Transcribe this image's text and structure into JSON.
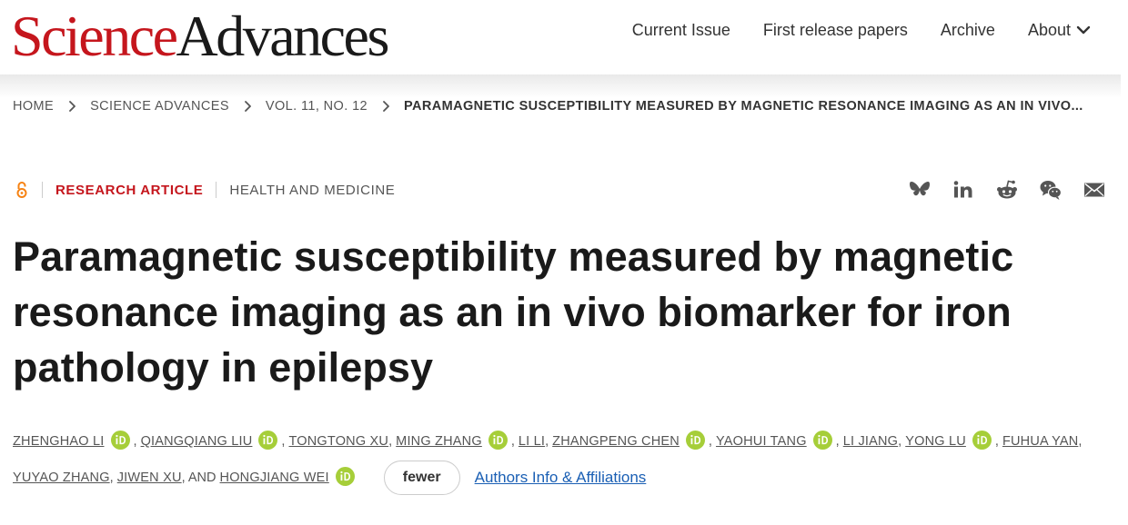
{
  "header": {
    "logo": {
      "science": "Science",
      "advances": "Advances"
    },
    "nav": [
      {
        "label": "Current Issue"
      },
      {
        "label": "First release papers"
      },
      {
        "label": "Archive"
      },
      {
        "label": "About"
      }
    ]
  },
  "breadcrumb": [
    "HOME",
    "SCIENCE ADVANCES",
    "VOL. 11, NO. 12",
    "PARAMAGNETIC SUSCEPTIBILITY MEASURED BY MAGNETIC RESONANCE IMAGING AS AN IN VIVO..."
  ],
  "article": {
    "type": "RESEARCH ARTICLE",
    "subject": "HEALTH AND MEDICINE",
    "title": "Paramagnetic susceptibility measured by magnetic resonance imaging as an in vivo biomarker for iron pathology in epilepsy"
  },
  "authors": [
    "ZHENGHAO LI",
    "QIANGQIANG LIU",
    "TONGTONG XU",
    "MING ZHANG",
    "LI LI",
    "ZHANGPENG CHEN",
    "YAOHUI TANG",
    "LI JIANG",
    "YONG LU",
    "FUHUA YAN",
    "YUYAO ZHANG",
    "JIWEN XU",
    "HONGJIANG WEI"
  ],
  "author_text": {
    "sep": ",",
    "and": ", AND"
  },
  "buttons": {
    "fewer": "fewer",
    "affiliations": "Authors Info & Affiliations"
  },
  "icons": {
    "open_access": "open-access-icon",
    "share": [
      "bluesky-icon",
      "linkedin-icon",
      "reddit-icon",
      "wechat-icon",
      "email-icon"
    ],
    "orcid": "orcid-icon"
  },
  "colors": {
    "brand_red": "#c5161d",
    "orcid_green": "#a6ce39",
    "link_blue": "#1a5fb4",
    "open_access_orange": "#f68212"
  }
}
